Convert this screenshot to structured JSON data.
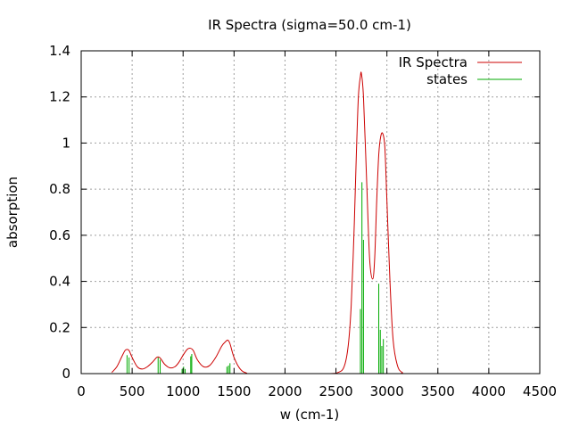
{
  "chart_data": {
    "type": "line",
    "title": "IR Spectra (sigma=50.0 cm-1)",
    "xlabel": "w (cm-1)",
    "ylabel": "absorption",
    "xlim": [
      0,
      4500
    ],
    "ylim": [
      0,
      1.4
    ],
    "xticks": [
      "0",
      "500",
      "1000",
      "1500",
      "2000",
      "2500",
      "3000",
      "3500",
      "4000",
      "4500"
    ],
    "yticks": [
      "0",
      "0.2",
      "0.4",
      "0.6",
      "0.8",
      "1",
      "1.2",
      "1.4"
    ],
    "grid": true,
    "legend_position": "top-right",
    "colors": {
      "spectrum": "#cc0000",
      "states": "#00aa00",
      "grid": "#a0a0a0",
      "frame": "#000000"
    },
    "series": [
      {
        "name": "IR Spectra",
        "kind": "line",
        "x": [
          300,
          350,
          400,
          430,
          450,
          470,
          500,
          550,
          600,
          650,
          700,
          740,
          760,
          780,
          820,
          870,
          920,
          960,
          1000,
          1040,
          1070,
          1100,
          1140,
          1200,
          1260,
          1320,
          1380,
          1420,
          1440,
          1460,
          1500,
          1560,
          1620,
          1700,
          2400,
          2520,
          2580,
          2620,
          2650,
          2680,
          2700,
          2720,
          2740,
          2750,
          2770,
          2800,
          2830,
          2860,
          2880,
          2900,
          2920,
          2940,
          2960,
          2980,
          3000,
          3030,
          3060,
          3100,
          3150,
          3250,
          4300
        ],
        "y": [
          0.005,
          0.03,
          0.075,
          0.1,
          0.105,
          0.1,
          0.07,
          0.03,
          0.02,
          0.03,
          0.05,
          0.07,
          0.072,
          0.065,
          0.04,
          0.025,
          0.03,
          0.05,
          0.08,
          0.105,
          0.11,
          0.1,
          0.06,
          0.03,
          0.035,
          0.07,
          0.12,
          0.14,
          0.145,
          0.13,
          0.07,
          0.02,
          0.003,
          0.0,
          0.0,
          0.005,
          0.03,
          0.12,
          0.3,
          0.65,
          0.95,
          1.2,
          1.29,
          1.3,
          1.2,
          0.85,
          0.5,
          0.41,
          0.5,
          0.75,
          0.95,
          1.03,
          1.04,
          0.98,
          0.75,
          0.4,
          0.15,
          0.04,
          0.005,
          0.0,
          0.0
        ]
      },
      {
        "name": "states",
        "kind": "impulse",
        "x": [
          450,
          470,
          755,
          775,
          990,
          1005,
          1020,
          1075,
          1085,
          1430,
          1445,
          1460,
          2740,
          2755,
          2770,
          2920,
          2935,
          2950,
          2965
        ],
        "y": [
          0.08,
          0.07,
          0.07,
          0.06,
          0.02,
          0.03,
          0.02,
          0.075,
          0.085,
          0.03,
          0.035,
          0.045,
          0.28,
          0.83,
          0.58,
          0.39,
          0.19,
          0.12,
          0.15
        ]
      }
    ]
  }
}
